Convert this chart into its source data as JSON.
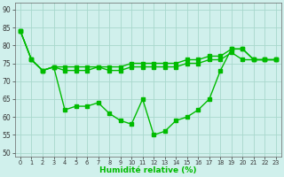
{
  "xlabel": "Humidité relative (%)",
  "background_color": "#d0f0ec",
  "grid_color": "#a8d8cc",
  "line_color": "#00bb00",
  "xlim": [
    -0.5,
    23.5
  ],
  "ylim": [
    49,
    92
  ],
  "yticks": [
    50,
    55,
    60,
    65,
    70,
    75,
    80,
    85,
    90
  ],
  "xticks": [
    0,
    1,
    2,
    3,
    4,
    5,
    6,
    7,
    8,
    9,
    10,
    11,
    12,
    13,
    14,
    15,
    16,
    17,
    18,
    19,
    20,
    21,
    22,
    23
  ],
  "line_top": [
    84,
    76,
    73,
    74,
    74,
    74,
    74,
    74,
    74,
    74,
    75,
    75,
    75,
    75,
    75,
    76,
    76,
    77,
    77,
    79,
    79,
    76,
    76,
    76
  ],
  "line_mid": [
    84,
    76,
    73,
    74,
    73,
    73,
    73,
    74,
    73,
    73,
    74,
    74,
    74,
    74,
    74,
    75,
    75,
    76,
    76,
    78,
    76,
    76,
    76,
    76
  ],
  "line_bot": [
    84,
    76,
    73,
    74,
    62,
    63,
    63,
    64,
    61,
    59,
    58,
    65,
    55,
    56,
    59,
    60,
    62,
    65,
    73,
    79,
    79,
    76,
    76,
    76
  ]
}
